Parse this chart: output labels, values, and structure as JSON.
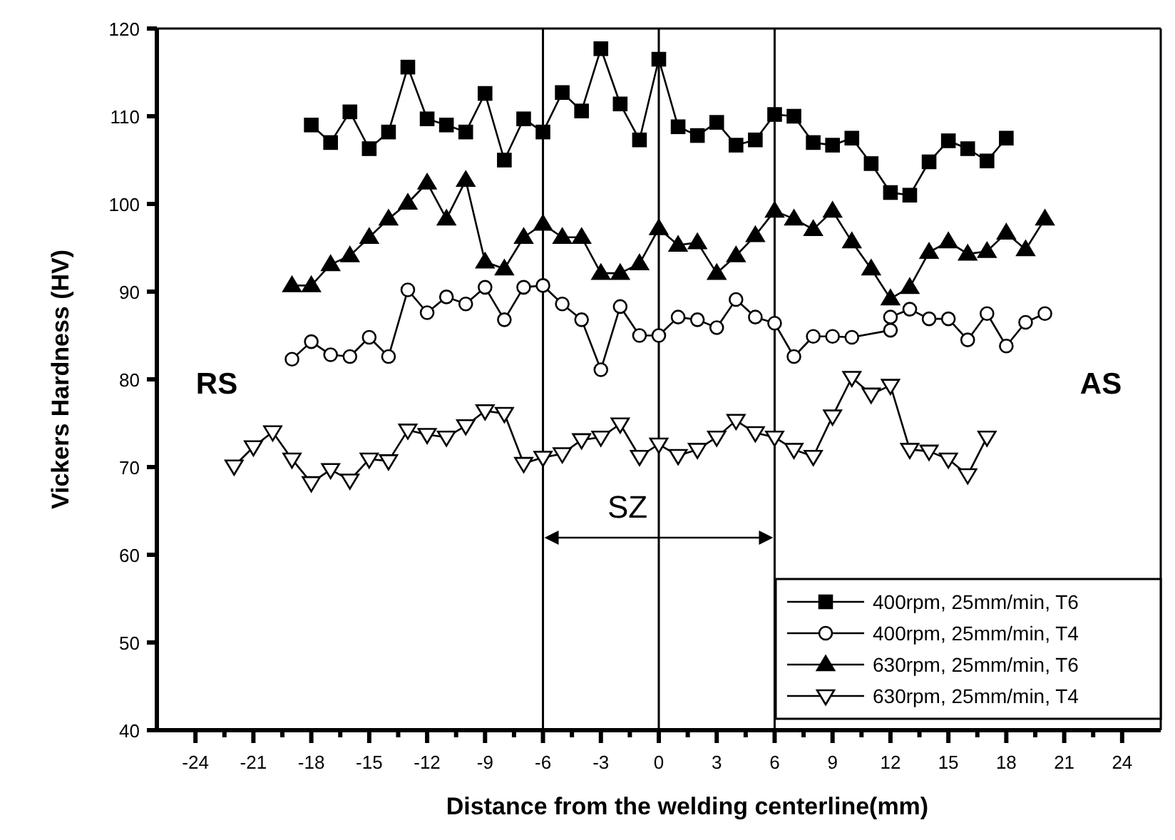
{
  "chart_data": {
    "type": "line",
    "xlabel": "Distance from the welding centerline(mm)",
    "ylabel": "Vickers Hardness (HV)",
    "xlim": [
      -26,
      26
    ],
    "ylim": [
      40,
      120
    ],
    "xticks": [
      -24,
      {
        "value": -22.5,
        "label": null
      },
      -21,
      {
        "value": -19.5,
        "label": null
      },
      -18,
      {
        "value": -16.5,
        "label": null
      },
      -15,
      {
        "value": -13.5,
        "label": null
      },
      -12,
      {
        "value": -10.5,
        "label": null
      },
      -9,
      {
        "value": -7.5,
        "label": null
      },
      -6,
      {
        "value": -4.5,
        "label": null
      },
      -3,
      {
        "value": -1.5,
        "label": null
      },
      0,
      {
        "value": 1.5,
        "label": null
      },
      3,
      {
        "value": 4.5,
        "label": null
      },
      6,
      {
        "value": 7.5,
        "label": null
      },
      9,
      {
        "value": 10.5,
        "label": null
      },
      12,
      {
        "value": 13.5,
        "label": null
      },
      15,
      {
        "value": 16.5,
        "label": null
      },
      18,
      {
        "value": 19.5,
        "label": null
      },
      21,
      {
        "value": 22.5,
        "label": null
      },
      24
    ],
    "yticks": [
      40,
      50,
      60,
      70,
      80,
      90,
      100,
      110,
      120
    ],
    "grid": false,
    "legend": "bottom right",
    "line_style": "solid",
    "series": [
      {
        "name": "400rpm, 25mm/min, T6",
        "color": "#000000",
        "marker": "square",
        "x": [
          -18,
          -17,
          -16,
          -15,
          -14,
          -13,
          -12,
          -11,
          -10,
          -9,
          -8,
          -7,
          -6,
          -5,
          -4,
          -3,
          -2,
          -1,
          0,
          1,
          2,
          3,
          4,
          5,
          6,
          7,
          8,
          9,
          10,
          11,
          12,
          13,
          14,
          15,
          16,
          17,
          18
        ],
        "values": [
          109.0,
          107.0,
          110.5,
          106.3,
          108.2,
          115.6,
          109.7,
          109.0,
          108.2,
          112.6,
          105.0,
          109.7,
          108.2,
          112.7,
          110.6,
          117.7,
          111.4,
          107.3,
          116.5,
          108.8,
          107.8,
          109.3,
          106.7,
          107.3,
          110.2,
          110.0,
          107.0,
          106.7,
          107.5,
          104.6,
          101.3,
          101.0,
          104.8,
          107.2,
          106.3,
          104.9,
          107.5
        ]
      },
      {
        "name": "400rpm, 25mm/min, T4",
        "color": "#000000",
        "marker": "circle",
        "x": [
          -19,
          -18,
          -17,
          -16,
          -15,
          -14,
          -13,
          -12,
          -11,
          -10,
          -9,
          -8,
          -7,
          -6,
          -5,
          -4,
          -3,
          -2,
          -1,
          0,
          1,
          2,
          3,
          4,
          5,
          6,
          7,
          8,
          9,
          10,
          12,
          12,
          13,
          14,
          15,
          16,
          17,
          18,
          19,
          20
        ],
        "values": [
          82.3,
          84.3,
          82.8,
          82.6,
          84.8,
          82.6,
          90.2,
          87.6,
          89.4,
          88.6,
          90.5,
          86.8,
          90.5,
          90.7,
          88.6,
          86.8,
          81.1,
          88.3,
          85.0,
          85.0,
          87.1,
          86.8,
          85.9,
          89.1,
          87.1,
          86.4,
          82.6,
          84.9,
          84.9,
          84.8,
          85.6,
          87.1,
          88.0,
          86.9,
          86.9,
          84.5,
          87.5,
          83.8,
          86.5,
          87.5
        ]
      },
      {
        "name": "630rpm, 25mm/min, T6",
        "color": "#000000",
        "marker": "triangle",
        "x": [
          -19,
          -18,
          -17,
          -16,
          -15,
          -14,
          -13,
          -12,
          -11,
          -10,
          -9,
          -8,
          -7,
          -6,
          -5,
          -4,
          -3,
          -2,
          -1,
          0,
          1,
          2,
          3,
          4,
          5,
          6,
          7,
          8,
          9,
          10,
          11,
          12,
          13,
          14,
          15,
          16,
          17,
          18,
          19,
          20
        ],
        "values": [
          90.7,
          90.7,
          93.1,
          94.1,
          96.2,
          98.3,
          100.1,
          102.4,
          98.3,
          102.7,
          93.4,
          92.6,
          96.2,
          97.7,
          96.2,
          96.2,
          92.1,
          92.1,
          93.2,
          97.2,
          95.3,
          95.6,
          92.1,
          94.1,
          96.4,
          99.2,
          98.3,
          97.1,
          99.2,
          95.7,
          92.6,
          89.2,
          90.5,
          94.5,
          95.7,
          94.3,
          94.6,
          96.7,
          94.8,
          98.3
        ]
      },
      {
        "name": "630rpm, 25mm/min, T4",
        "color": "#000000",
        "marker": "triangle-down",
        "x": [
          -22,
          -21,
          -20,
          -19,
          -18,
          -17,
          -16,
          -15,
          -14,
          -13,
          -12,
          -11,
          -10,
          -9,
          -8,
          -7,
          -6,
          -5,
          -4,
          -3,
          -2,
          -1,
          0,
          1,
          2,
          3,
          4,
          5,
          6,
          7,
          8,
          9,
          10,
          11,
          12,
          13,
          14,
          15,
          16,
          17
        ],
        "values": [
          70.1,
          72.3,
          74.0,
          70.9,
          68.2,
          69.7,
          68.5,
          70.9,
          70.7,
          74.2,
          73.7,
          73.4,
          74.7,
          76.4,
          76.1,
          70.4,
          71.1,
          71.5,
          73.1,
          73.4,
          74.9,
          71.2,
          72.6,
          71.3,
          72.0,
          73.4,
          75.3,
          73.9,
          73.4,
          72.0,
          71.2,
          75.8,
          80.2,
          78.3,
          79.3,
          72.0,
          71.8,
          70.9,
          69.1,
          73.4
        ]
      }
    ],
    "ref_lines": [
      {
        "axis": "x",
        "value": -6,
        "color": "#000000"
      },
      {
        "axis": "x",
        "value": 0,
        "color": "#000000"
      },
      {
        "axis": "x",
        "value": 6,
        "color": "#000000"
      }
    ],
    "annotations": [
      "RS",
      "AS",
      "SZ"
    ]
  }
}
